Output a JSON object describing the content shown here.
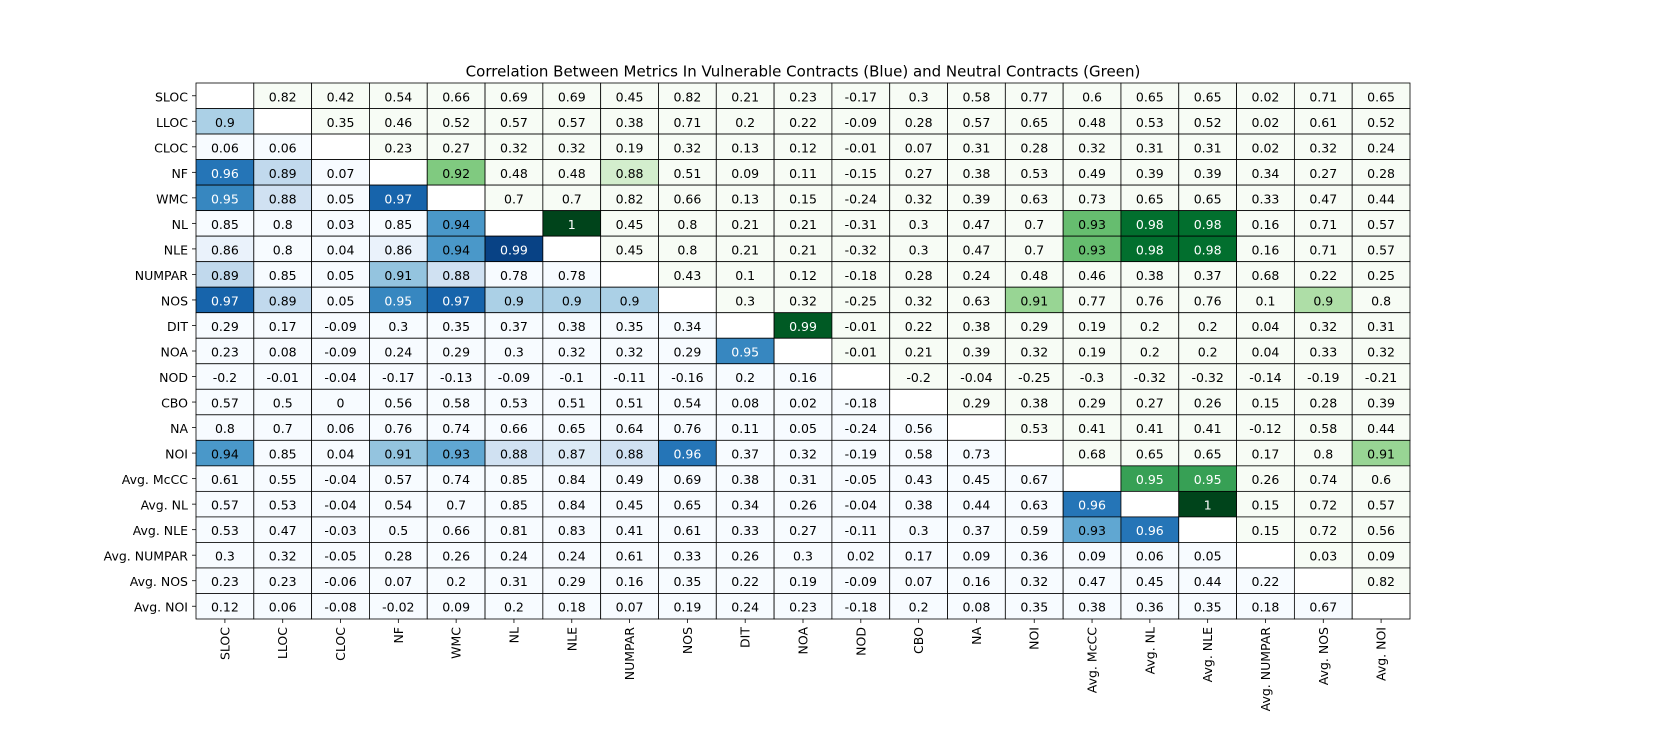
{
  "chart_data": {
    "type": "heatmap",
    "title": "Correlation Between Metrics In Vulnerable Contracts (Blue) and Neutral Contracts (Green)",
    "categories": [
      "SLOC",
      "LLOC",
      "CLOC",
      "NF",
      "WMC",
      "NL",
      "NLE",
      "NUMPAR",
      "NOS",
      "DIT",
      "NOA",
      "NOD",
      "CBO",
      "NA",
      "NOI",
      "Avg. McCC",
      "Avg. NL",
      "Avg. NLE",
      "Avg. NUMPAR",
      "Avg. NOS",
      "Avg. NOI"
    ],
    "values": [
      [
        null,
        0.82,
        0.42,
        0.54,
        0.66,
        0.69,
        0.69,
        0.45,
        0.82,
        0.21,
        0.23,
        -0.17,
        0.3,
        0.58,
        0.77,
        0.6,
        0.65,
        0.65,
        0.02,
        0.71,
        0.65
      ],
      [
        0.9,
        null,
        0.35,
        0.46,
        0.52,
        0.57,
        0.57,
        0.38,
        0.71,
        0.2,
        0.22,
        -0.09,
        0.28,
        0.57,
        0.65,
        0.48,
        0.53,
        0.52,
        0.02,
        0.61,
        0.52
      ],
      [
        0.06,
        0.06,
        null,
        0.23,
        0.27,
        0.32,
        0.32,
        0.19,
        0.32,
        0.13,
        0.12,
        -0.01,
        0.07,
        0.31,
        0.28,
        0.32,
        0.31,
        0.31,
        0.02,
        0.32,
        0.24
      ],
      [
        0.96,
        0.89,
        0.07,
        null,
        0.92,
        0.48,
        0.48,
        0.88,
        0.51,
        0.09,
        0.11,
        -0.15,
        0.27,
        0.38,
        0.53,
        0.49,
        0.39,
        0.39,
        0.34,
        0.27,
        0.28
      ],
      [
        0.95,
        0.88,
        0.05,
        0.97,
        null,
        0.7,
        0.7,
        0.82,
        0.66,
        0.13,
        0.15,
        -0.24,
        0.32,
        0.39,
        0.63,
        0.73,
        0.65,
        0.65,
        0.33,
        0.47,
        0.44
      ],
      [
        0.85,
        0.8,
        0.03,
        0.85,
        0.94,
        null,
        1,
        0.45,
        0.8,
        0.21,
        0.21,
        -0.31,
        0.3,
        0.47,
        0.7,
        0.93,
        0.98,
        0.98,
        0.16,
        0.71,
        0.57
      ],
      [
        0.86,
        0.8,
        0.04,
        0.86,
        0.94,
        0.99,
        null,
        0.45,
        0.8,
        0.21,
        0.21,
        -0.32,
        0.3,
        0.47,
        0.7,
        0.93,
        0.98,
        0.98,
        0.16,
        0.71,
        0.57
      ],
      [
        0.89,
        0.85,
        0.05,
        0.91,
        0.88,
        0.78,
        0.78,
        null,
        0.43,
        0.1,
        0.12,
        -0.18,
        0.28,
        0.24,
        0.48,
        0.46,
        0.38,
        0.37,
        0.68,
        0.22,
        0.25
      ],
      [
        0.97,
        0.89,
        0.05,
        0.95,
        0.97,
        0.9,
        0.9,
        0.9,
        null,
        0.3,
        0.32,
        -0.25,
        0.32,
        0.63,
        0.91,
        0.77,
        0.76,
        0.76,
        0.1,
        0.9,
        0.8
      ],
      [
        0.29,
        0.17,
        -0.09,
        0.3,
        0.35,
        0.37,
        0.38,
        0.35,
        0.34,
        null,
        0.99,
        -0.01,
        0.22,
        0.38,
        0.29,
        0.19,
        0.2,
        0.2,
        0.04,
        0.32,
        0.31
      ],
      [
        0.23,
        0.08,
        -0.09,
        0.24,
        0.29,
        0.3,
        0.32,
        0.32,
        0.29,
        0.95,
        null,
        -0.01,
        0.21,
        0.39,
        0.32,
        0.19,
        0.2,
        0.2,
        0.04,
        0.33,
        0.32
      ],
      [
        -0.2,
        -0.01,
        -0.04,
        -0.17,
        -0.13,
        -0.09,
        -0.1,
        -0.11,
        -0.16,
        0.2,
        0.16,
        null,
        -0.2,
        -0.04,
        -0.25,
        -0.3,
        -0.32,
        -0.32,
        -0.14,
        -0.19,
        -0.21
      ],
      [
        0.57,
        0.5,
        0,
        0.56,
        0.58,
        0.53,
        0.51,
        0.51,
        0.54,
        0.08,
        0.02,
        -0.18,
        null,
        0.29,
        0.38,
        0.29,
        0.27,
        0.26,
        0.15,
        0.28,
        0.39
      ],
      [
        0.8,
        0.7,
        0.06,
        0.76,
        0.74,
        0.66,
        0.65,
        0.64,
        0.76,
        0.11,
        0.05,
        -0.24,
        0.56,
        null,
        0.53,
        0.41,
        0.41,
        0.41,
        -0.12,
        0.58,
        0.44
      ],
      [
        0.94,
        0.85,
        0.04,
        0.91,
        0.93,
        0.88,
        0.87,
        0.88,
        0.96,
        0.37,
        0.32,
        -0.19,
        0.58,
        0.73,
        null,
        0.68,
        0.65,
        0.65,
        0.17,
        0.8,
        0.91
      ],
      [
        0.61,
        0.55,
        -0.04,
        0.57,
        0.74,
        0.85,
        0.84,
        0.49,
        0.69,
        0.38,
        0.31,
        -0.05,
        0.43,
        0.45,
        0.67,
        null,
        0.95,
        0.95,
        0.26,
        0.74,
        0.6
      ],
      [
        0.57,
        0.53,
        -0.04,
        0.54,
        0.7,
        0.85,
        0.84,
        0.45,
        0.65,
        0.34,
        0.26,
        -0.04,
        0.38,
        0.44,
        0.63,
        0.96,
        null,
        1,
        0.15,
        0.72,
        0.57
      ],
      [
        0.53,
        0.47,
        -0.03,
        0.5,
        0.66,
        0.81,
        0.83,
        0.41,
        0.61,
        0.33,
        0.27,
        -0.11,
        0.3,
        0.37,
        0.59,
        0.93,
        0.96,
        null,
        0.15,
        0.72,
        0.56
      ],
      [
        0.3,
        0.32,
        -0.05,
        0.28,
        0.26,
        0.24,
        0.24,
        0.61,
        0.33,
        0.26,
        0.3,
        0.02,
        0.17,
        0.09,
        0.36,
        0.09,
        0.06,
        0.05,
        null,
        0.03,
        0.09
      ],
      [
        0.23,
        0.23,
        -0.06,
        0.07,
        0.2,
        0.31,
        0.29,
        0.16,
        0.35,
        0.22,
        0.19,
        -0.09,
        0.07,
        0.16,
        0.32,
        0.47,
        0.45,
        0.44,
        0.22,
        null,
        0.82
      ],
      [
        0.12,
        0.06,
        -0.08,
        -0.02,
        0.09,
        0.2,
        0.18,
        0.07,
        0.19,
        0.24,
        0.23,
        -0.18,
        0.2,
        0.08,
        0.35,
        0.38,
        0.36,
        0.35,
        0.18,
        0.67,
        null
      ]
    ],
    "color_range": [
      0.85,
      1
    ],
    "lower_colormap": [
      "#f7fbff",
      "#deebf7",
      "#c6dbef",
      "#9ecae1",
      "#6baed6",
      "#4292c6",
      "#2171b5",
      "#08519c",
      "#08306b"
    ],
    "upper_colormap": [
      "#f7fcf5",
      "#e5f5e0",
      "#c7e9c0",
      "#a1d99b",
      "#74c476",
      "#41ab5d",
      "#238b45",
      "#006d2c",
      "#00441b"
    ]
  }
}
